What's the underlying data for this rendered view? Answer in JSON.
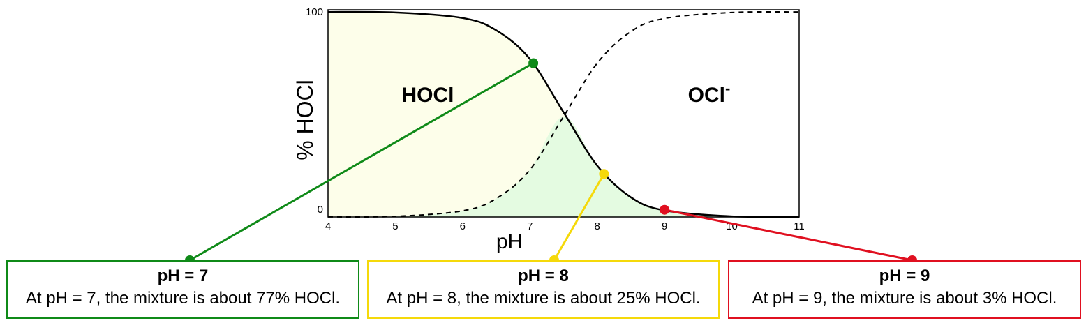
{
  "colors": {
    "hocl_region": "#fdfeea",
    "overlap_region": "#e4fbe1",
    "curve": "#000000",
    "green": "#0f8a18",
    "yellow": "#f5d90a",
    "red": "#e01020"
  },
  "chart_data": {
    "type": "line",
    "xlabel": "pH",
    "ylabel": "% HOCl",
    "xlim": [
      4,
      11
    ],
    "ylim": [
      0,
      100
    ],
    "x_ticks": [
      "4",
      "5",
      "6",
      "7",
      "8",
      "9",
      "10",
      "11"
    ],
    "y_ticks": [
      "0",
      "100"
    ],
    "region_labels": {
      "hocl": "HOCl",
      "ocl": "OCl",
      "ocl_superscript": "-"
    },
    "series": [
      {
        "style": "solid",
        "x": [
          4,
          5,
          6,
          6.5,
          7,
          7.5,
          8,
          8.5,
          9,
          10,
          11
        ],
        "y": [
          99.97,
          99.7,
          97,
          91,
          77,
          51,
          25,
          9.6,
          3.2,
          0.3,
          0.03
        ]
      },
      {
        "style": "dashed",
        "x": [
          4,
          5,
          6,
          6.5,
          7,
          7.5,
          8,
          8.5,
          9,
          10,
          11
        ],
        "y": [
          0.03,
          0.3,
          3,
          9,
          23,
          49,
          75,
          90.4,
          96.8,
          99.7,
          99.97
        ]
      }
    ],
    "highlighted_points": [
      {
        "x": 7.05,
        "y": 75,
        "color": "#0f8a18"
      },
      {
        "x": 8.1,
        "y": 21,
        "color": "#f5d90a"
      },
      {
        "x": 9,
        "y": 3.5,
        "color": "#e01020"
      }
    ]
  },
  "callouts": [
    {
      "title": "pH = 7",
      "text": "At pH = 7, the mixture is about 77% HOCl.",
      "color": "#0f8a18"
    },
    {
      "title": "pH = 8",
      "text": "At pH = 8, the mixture is about 25% HOCl.",
      "color": "#f5d90a"
    },
    {
      "title": "pH = 9",
      "text": "At pH = 9, the mixture is about 3% HOCl.",
      "color": "#e01020"
    }
  ]
}
